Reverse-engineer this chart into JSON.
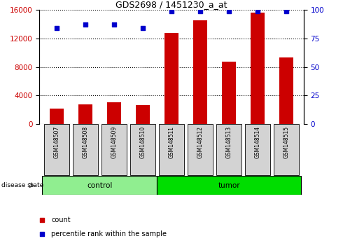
{
  "title": "GDS2698 / 1451230_a_at",
  "samples": [
    "GSM148507",
    "GSM148508",
    "GSM148509",
    "GSM148510",
    "GSM148511",
    "GSM148512",
    "GSM148513",
    "GSM148514",
    "GSM148515"
  ],
  "counts": [
    2200,
    2800,
    3000,
    2700,
    12800,
    14500,
    8700,
    15600,
    9300
  ],
  "percentile_ranks": [
    84,
    87,
    87,
    84,
    99,
    99,
    99,
    99,
    99
  ],
  "groups": [
    "control",
    "control",
    "control",
    "control",
    "tumor",
    "tumor",
    "tumor",
    "tumor",
    "tumor"
  ],
  "left_ylim": [
    0,
    16000
  ],
  "right_ylim": [
    0,
    100
  ],
  "left_yticks": [
    0,
    4000,
    8000,
    12000,
    16000
  ],
  "right_yticks": [
    0,
    25,
    50,
    75,
    100
  ],
  "bar_color": "#cc0000",
  "dot_color": "#0000cc",
  "control_color": "#90ee90",
  "tumor_color": "#00dd00",
  "label_bg_color": "#d3d3d3",
  "legend_count": "count",
  "legend_percentile": "percentile rank within the sample",
  "disease_state_label": "disease state"
}
